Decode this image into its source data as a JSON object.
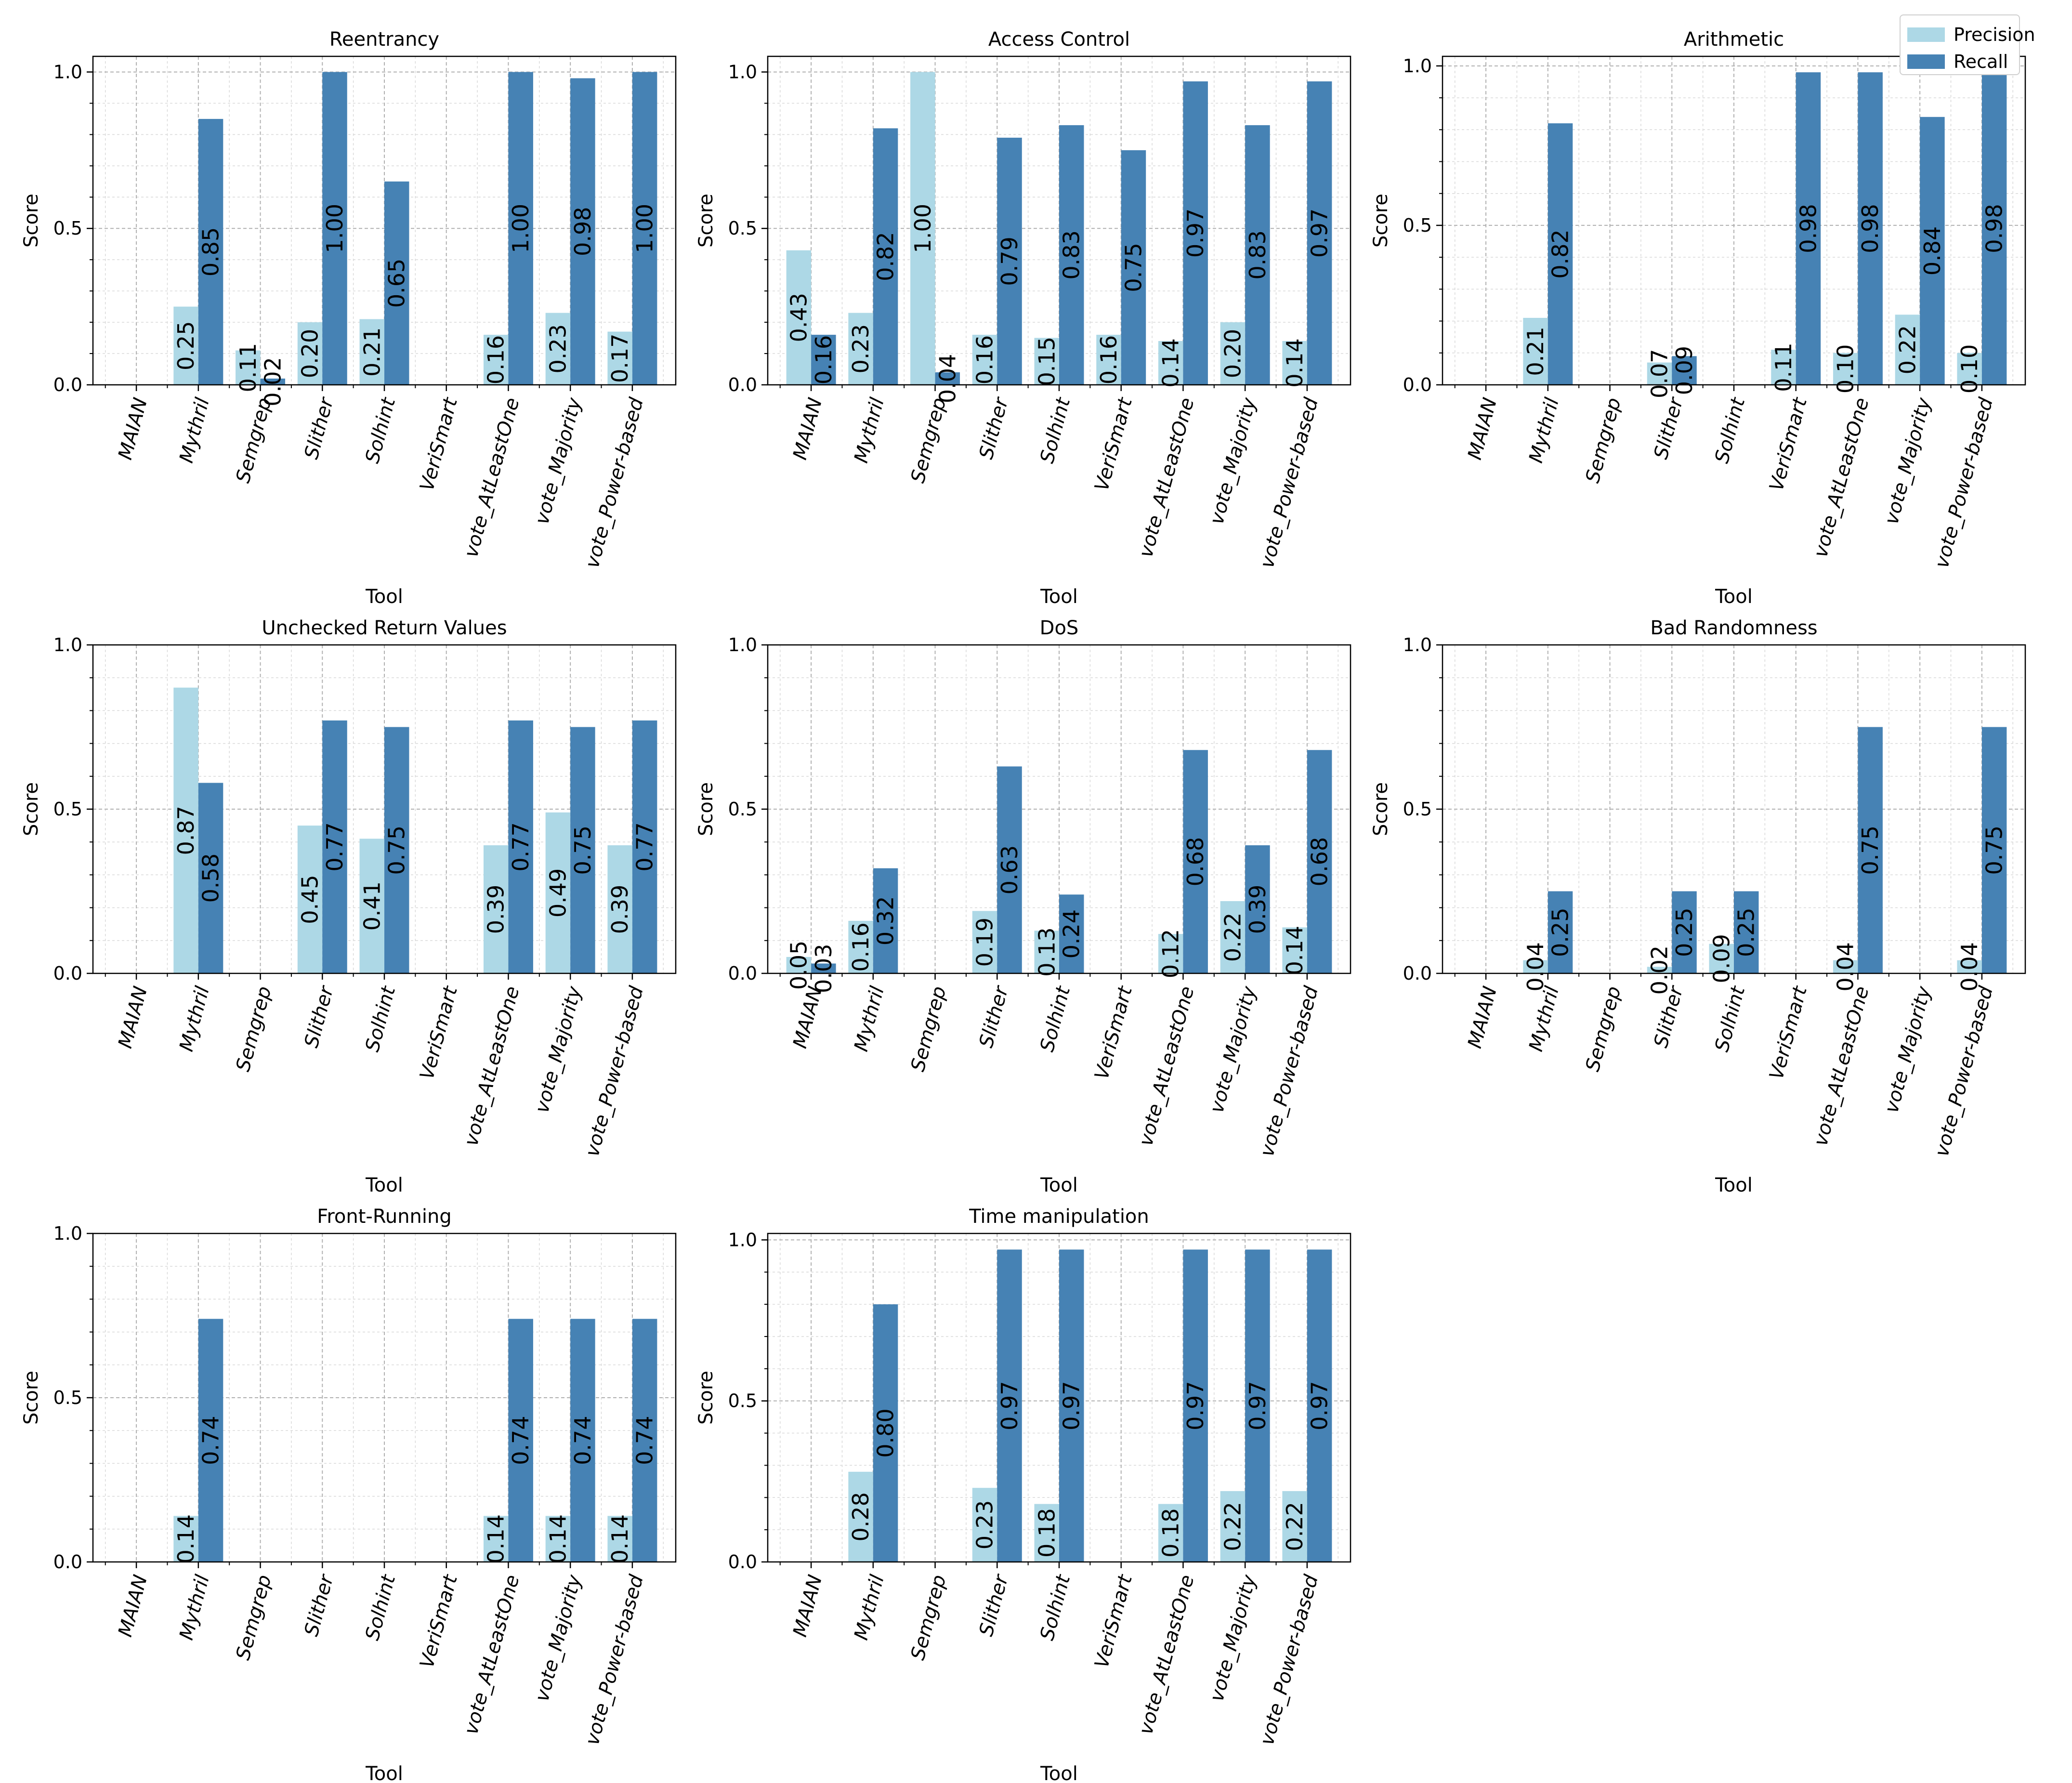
{
  "legend": {
    "precision_label": "Precision",
    "recall_label": "Recall",
    "precision_color": "#add8e6",
    "recall_color": "#4682b4"
  },
  "chart_data": [
    {
      "type": "bar",
      "title": "Reentrancy",
      "xlabel": "Tool",
      "ylabel": "Score",
      "ylim": [
        0,
        1.05
      ],
      "yticks": [
        "0.0",
        "0.5",
        "1.0"
      ],
      "categories": [
        "MAIAN",
        "Mythril",
        "Semgrep",
        "Slither",
        "Solhint",
        "VeriSmart",
        "vote_AtLeastOne",
        "vote_Majority",
        "vote_Power-based"
      ],
      "series": [
        {
          "name": "Precision",
          "values": [
            0,
            0.25,
            0.11,
            0.2,
            0.21,
            0,
            0.16,
            0.23,
            0.17
          ],
          "labels": [
            null,
            "0.25",
            "0.11",
            "0.20",
            "0.21",
            null,
            "0.16",
            "0.23",
            "0.17"
          ]
        },
        {
          "name": "Recall",
          "values": [
            0,
            0.85,
            0.02,
            1.0,
            0.65,
            0,
            1.0,
            0.98,
            1.0
          ],
          "labels": [
            null,
            "0.85",
            "0.02",
            "1.00",
            "0.65",
            null,
            "1.00",
            "0.98",
            "1.00"
          ]
        }
      ]
    },
    {
      "type": "bar",
      "title": "Access Control",
      "xlabel": "Tool",
      "ylabel": "Score",
      "ylim": [
        0,
        1.05
      ],
      "yticks": [
        "0.0",
        "0.5",
        "1.0"
      ],
      "categories": [
        "MAIAN",
        "Mythril",
        "Semgrep",
        "Slither",
        "Solhint",
        "VeriSmart",
        "vote_AtLeastOne",
        "vote_Majority",
        "vote_Power-based"
      ],
      "series": [
        {
          "name": "Precision",
          "values": [
            0.43,
            0.23,
            1.0,
            0.16,
            0.15,
            0.16,
            0.14,
            0.2,
            0.14
          ],
          "labels": [
            "0.43",
            "0.23",
            "1.00",
            "0.16",
            "0.15",
            "0.16",
            "0.14",
            "0.20",
            "0.14"
          ]
        },
        {
          "name": "Recall",
          "values": [
            0.16,
            0.82,
            0.04,
            0.79,
            0.83,
            0.75,
            0.97,
            0.83,
            0.97
          ],
          "labels": [
            "0.16",
            "0.82",
            "0.04",
            "0.79",
            "0.83",
            "0.75",
            "0.97",
            "0.83",
            "0.97"
          ]
        }
      ]
    },
    {
      "type": "bar",
      "title": "Arithmetic",
      "xlabel": "Tool",
      "ylabel": "Score",
      "ylim": [
        0,
        1.03
      ],
      "yticks": [
        "0.0",
        "0.5",
        "1.0"
      ],
      "categories": [
        "MAIAN",
        "Mythril",
        "Semgrep",
        "Slither",
        "Solhint",
        "VeriSmart",
        "vote_AtLeastOne",
        "vote_Majority",
        "vote_Power-based"
      ],
      "series": [
        {
          "name": "Precision",
          "values": [
            0,
            0.21,
            0,
            0.07,
            0,
            0.11,
            0.1,
            0.22,
            0.1
          ],
          "labels": [
            null,
            "0.21",
            null,
            "0.07",
            null,
            "0.11",
            "0.10",
            "0.22",
            "0.10"
          ]
        },
        {
          "name": "Recall",
          "values": [
            0,
            0.82,
            0,
            0.09,
            0,
            0.98,
            0.98,
            0.84,
            0.98
          ],
          "labels": [
            null,
            "0.82",
            null,
            "0.09",
            null,
            "0.98",
            "0.98",
            "0.84",
            "0.98"
          ]
        }
      ]
    },
    {
      "type": "bar",
      "title": "Unchecked Return Values",
      "xlabel": "Tool",
      "ylabel": "Score",
      "ylim": [
        0,
        1.0
      ],
      "yticks": [
        "0.0",
        "0.5",
        "1.0"
      ],
      "categories": [
        "MAIAN",
        "Mythril",
        "Semgrep",
        "Slither",
        "Solhint",
        "VeriSmart",
        "vote_AtLeastOne",
        "vote_Majority",
        "vote_Power-based"
      ],
      "series": [
        {
          "name": "Precision",
          "values": [
            0,
            0.87,
            0,
            0.45,
            0.41,
            0,
            0.39,
            0.49,
            0.39
          ],
          "labels": [
            null,
            "0.87",
            null,
            "0.45",
            "0.41",
            null,
            "0.39",
            "0.49",
            "0.39"
          ]
        },
        {
          "name": "Recall",
          "values": [
            0,
            0.58,
            0,
            0.77,
            0.75,
            0,
            0.77,
            0.75,
            0.77
          ],
          "labels": [
            null,
            "0.58",
            null,
            "0.77",
            "0.75",
            null,
            "0.77",
            "0.75",
            "0.77"
          ]
        }
      ]
    },
    {
      "type": "bar",
      "title": "DoS",
      "xlabel": "Tool",
      "ylabel": "Score",
      "ylim": [
        0,
        1.0
      ],
      "yticks": [
        "0.0",
        "0.5",
        "1.0"
      ],
      "categories": [
        "MAIAN",
        "Mythril",
        "Semgrep",
        "Slither",
        "Solhint",
        "VeriSmart",
        "vote_AtLeastOne",
        "vote_Majority",
        "vote_Power-based"
      ],
      "series": [
        {
          "name": "Precision",
          "values": [
            0.05,
            0.16,
            0,
            0.19,
            0.13,
            0,
            0.12,
            0.22,
            0.14
          ],
          "labels": [
            "0.05",
            "0.16",
            null,
            "0.19",
            "0.13",
            null,
            "0.12",
            "0.22",
            "0.14"
          ]
        },
        {
          "name": "Recall",
          "values": [
            0.03,
            0.32,
            0,
            0.63,
            0.24,
            0,
            0.68,
            0.39,
            0.68
          ],
          "labels": [
            "0.03",
            "0.32",
            null,
            "0.63",
            "0.24",
            null,
            "0.68",
            "0.39",
            "0.68"
          ]
        }
      ]
    },
    {
      "type": "bar",
      "title": "Bad Randomness",
      "xlabel": "Tool",
      "ylabel": "Score",
      "ylim": [
        0,
        1.0
      ],
      "yticks": [
        "0.0",
        "0.5",
        "1.0"
      ],
      "categories": [
        "MAIAN",
        "Mythril",
        "Semgrep",
        "Slither",
        "Solhint",
        "VeriSmart",
        "vote_AtLeastOne",
        "vote_Majority",
        "vote_Power-based"
      ],
      "series": [
        {
          "name": "Precision",
          "values": [
            0,
            0.04,
            0,
            0.02,
            0.09,
            0,
            0.04,
            0,
            0.04
          ],
          "labels": [
            null,
            "0.04",
            null,
            "0.02",
            "0.09",
            null,
            "0.04",
            null,
            "0.04"
          ]
        },
        {
          "name": "Recall",
          "values": [
            0,
            0.25,
            0,
            0.25,
            0.25,
            0,
            0.75,
            0,
            0.75
          ],
          "labels": [
            null,
            "0.25",
            null,
            "0.25",
            "0.25",
            null,
            "0.75",
            null,
            "0.75"
          ]
        }
      ]
    },
    {
      "type": "bar",
      "title": "Front-Running",
      "xlabel": "Tool",
      "ylabel": "Score",
      "ylim": [
        0,
        1.0
      ],
      "yticks": [
        "0.0",
        "0.5",
        "1.0"
      ],
      "categories": [
        "MAIAN",
        "Mythril",
        "Semgrep",
        "Slither",
        "Solhint",
        "VeriSmart",
        "vote_AtLeastOne",
        "vote_Majority",
        "vote_Power-based"
      ],
      "series": [
        {
          "name": "Precision",
          "values": [
            0,
            0.14,
            0,
            0,
            0,
            0,
            0.14,
            0.14,
            0.14
          ],
          "labels": [
            null,
            "0.14",
            null,
            null,
            null,
            null,
            "0.14",
            "0.14",
            "0.14"
          ]
        },
        {
          "name": "Recall",
          "values": [
            0,
            0.74,
            0,
            0,
            0,
            0,
            0.74,
            0.74,
            0.74
          ],
          "labels": [
            null,
            "0.74",
            null,
            null,
            null,
            null,
            "0.74",
            "0.74",
            "0.74"
          ]
        }
      ]
    },
    {
      "type": "bar",
      "title": "Time manipulation",
      "xlabel": "Tool",
      "ylabel": "Score",
      "ylim": [
        0,
        1.02
      ],
      "yticks": [
        "0.0",
        "0.5",
        "1.0"
      ],
      "categories": [
        "MAIAN",
        "Mythril",
        "Semgrep",
        "Slither",
        "Solhint",
        "VeriSmart",
        "vote_AtLeastOne",
        "vote_Majority",
        "vote_Power-based"
      ],
      "series": [
        {
          "name": "Precision",
          "values": [
            0,
            0.28,
            0,
            0.23,
            0.18,
            0,
            0.18,
            0.22,
            0.22
          ],
          "labels": [
            null,
            "0.28",
            null,
            "0.23",
            "0.18",
            null,
            "0.18",
            "0.22",
            "0.22"
          ]
        },
        {
          "name": "Recall",
          "values": [
            0,
            0.8,
            0,
            0.97,
            0.97,
            0,
            0.97,
            0.97,
            0.97
          ],
          "labels": [
            null,
            "0.80",
            null,
            "0.97",
            "0.97",
            null,
            "0.97",
            "0.97",
            "0.97"
          ]
        }
      ]
    }
  ]
}
